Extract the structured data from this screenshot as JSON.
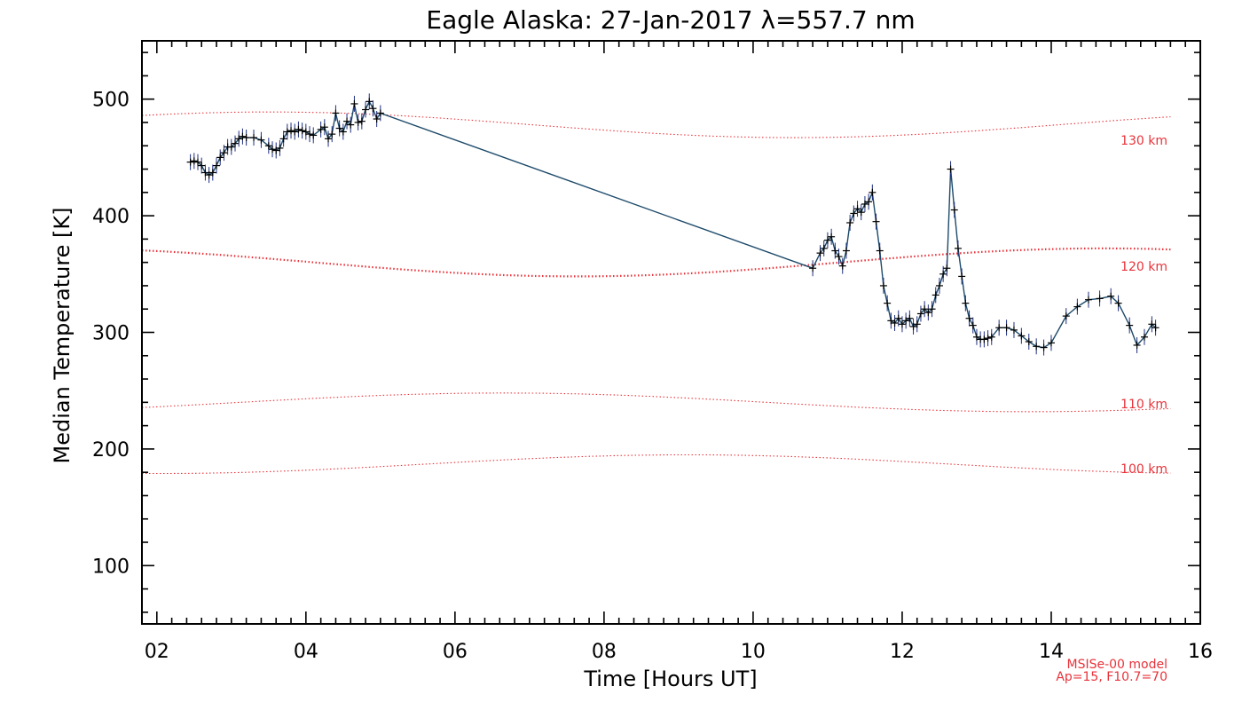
{
  "chart_data": {
    "type": "line",
    "title": "Eagle Alaska: 27-Jan-2017 λ=557.7 nm",
    "xlabel": "Time [Hours UT]",
    "ylabel": "Median Temperature [K]",
    "xlim": [
      1.8,
      16
    ],
    "ylim": [
      50,
      550
    ],
    "x_tick_labels": [
      "02",
      "04",
      "06",
      "08",
      "10",
      "12",
      "14",
      "16"
    ],
    "y_tick_labels": [
      "100",
      "200",
      "300",
      "400",
      "500"
    ],
    "grid": false,
    "series": [
      {
        "color": "#1e2f80",
        "marker": "+",
        "x": [
          2.45,
          2.5,
          2.55,
          2.6,
          2.65,
          2.7,
          2.75,
          2.8,
          2.85,
          2.9,
          2.95,
          3.0,
          3.05,
          3.1,
          3.15,
          3.2,
          3.3,
          3.4,
          3.5,
          3.55,
          3.6,
          3.65,
          3.7,
          3.75,
          3.8,
          3.85,
          3.9,
          3.95,
          4.0,
          4.05,
          4.1,
          4.2,
          4.25,
          4.3,
          4.35,
          4.4,
          4.45,
          4.5,
          4.55,
          4.6,
          4.65,
          4.7,
          4.75,
          4.8,
          4.85,
          4.9,
          4.95,
          5.0,
          10.8,
          10.9,
          10.95,
          11.0,
          11.05,
          11.1,
          11.15,
          11.2,
          11.25,
          11.3,
          11.35,
          11.4,
          11.45,
          11.5,
          11.55,
          11.6,
          11.65,
          11.7,
          11.75,
          11.8,
          11.85,
          11.9,
          11.95,
          12.0,
          12.05,
          12.1,
          12.15,
          12.2,
          12.25,
          12.3,
          12.35,
          12.4,
          12.45,
          12.5,
          12.55,
          12.6,
          12.65,
          12.7,
          12.75,
          12.8,
          12.85,
          12.9,
          12.95,
          13.0,
          13.05,
          13.1,
          13.15,
          13.2,
          13.3,
          13.4,
          13.5,
          13.6,
          13.7,
          13.8,
          13.9,
          14.0,
          14.2,
          14.35,
          14.5,
          14.65,
          14.8,
          14.9,
          15.05,
          15.15,
          15.25,
          15.35,
          15.4
        ],
        "y": [
          446,
          447,
          446,
          443,
          437,
          435,
          437,
          443,
          450,
          454,
          459,
          459,
          462,
          466,
          468,
          467,
          467,
          465,
          460,
          457,
          456,
          458,
          466,
          472,
          473,
          472,
          474,
          473,
          472,
          470,
          469,
          474,
          476,
          466,
          470,
          488,
          475,
          472,
          481,
          478,
          496,
          480,
          481,
          491,
          498,
          492,
          483,
          488,
          355,
          368,
          372,
          379,
          382,
          370,
          365,
          357,
          370,
          394,
          402,
          406,
          403,
          410,
          412,
          420,
          395,
          370,
          340,
          325,
          310,
          308,
          312,
          307,
          310,
          312,
          305,
          307,
          316,
          320,
          317,
          320,
          332,
          340,
          350,
          355,
          440,
          405,
          372,
          348,
          325,
          312,
          306,
          296,
          294,
          294,
          295,
          296,
          304,
          304,
          302,
          297,
          292,
          288,
          287,
          291,
          314,
          322,
          328,
          329,
          331,
          325,
          306,
          289,
          296,
          307,
          304
        ]
      }
    ],
    "model_curves": [
      {
        "label": "130 km",
        "color": "#e8333a"
      },
      {
        "label": "120 km",
        "color": "#e8333a"
      },
      {
        "label": "110 km",
        "color": "#e8333a"
      },
      {
        "label": "100 km",
        "color": "#e8333a"
      }
    ],
    "model_note": [
      "MSISe-00 model",
      "Ap=15, F10.7=70"
    ]
  }
}
